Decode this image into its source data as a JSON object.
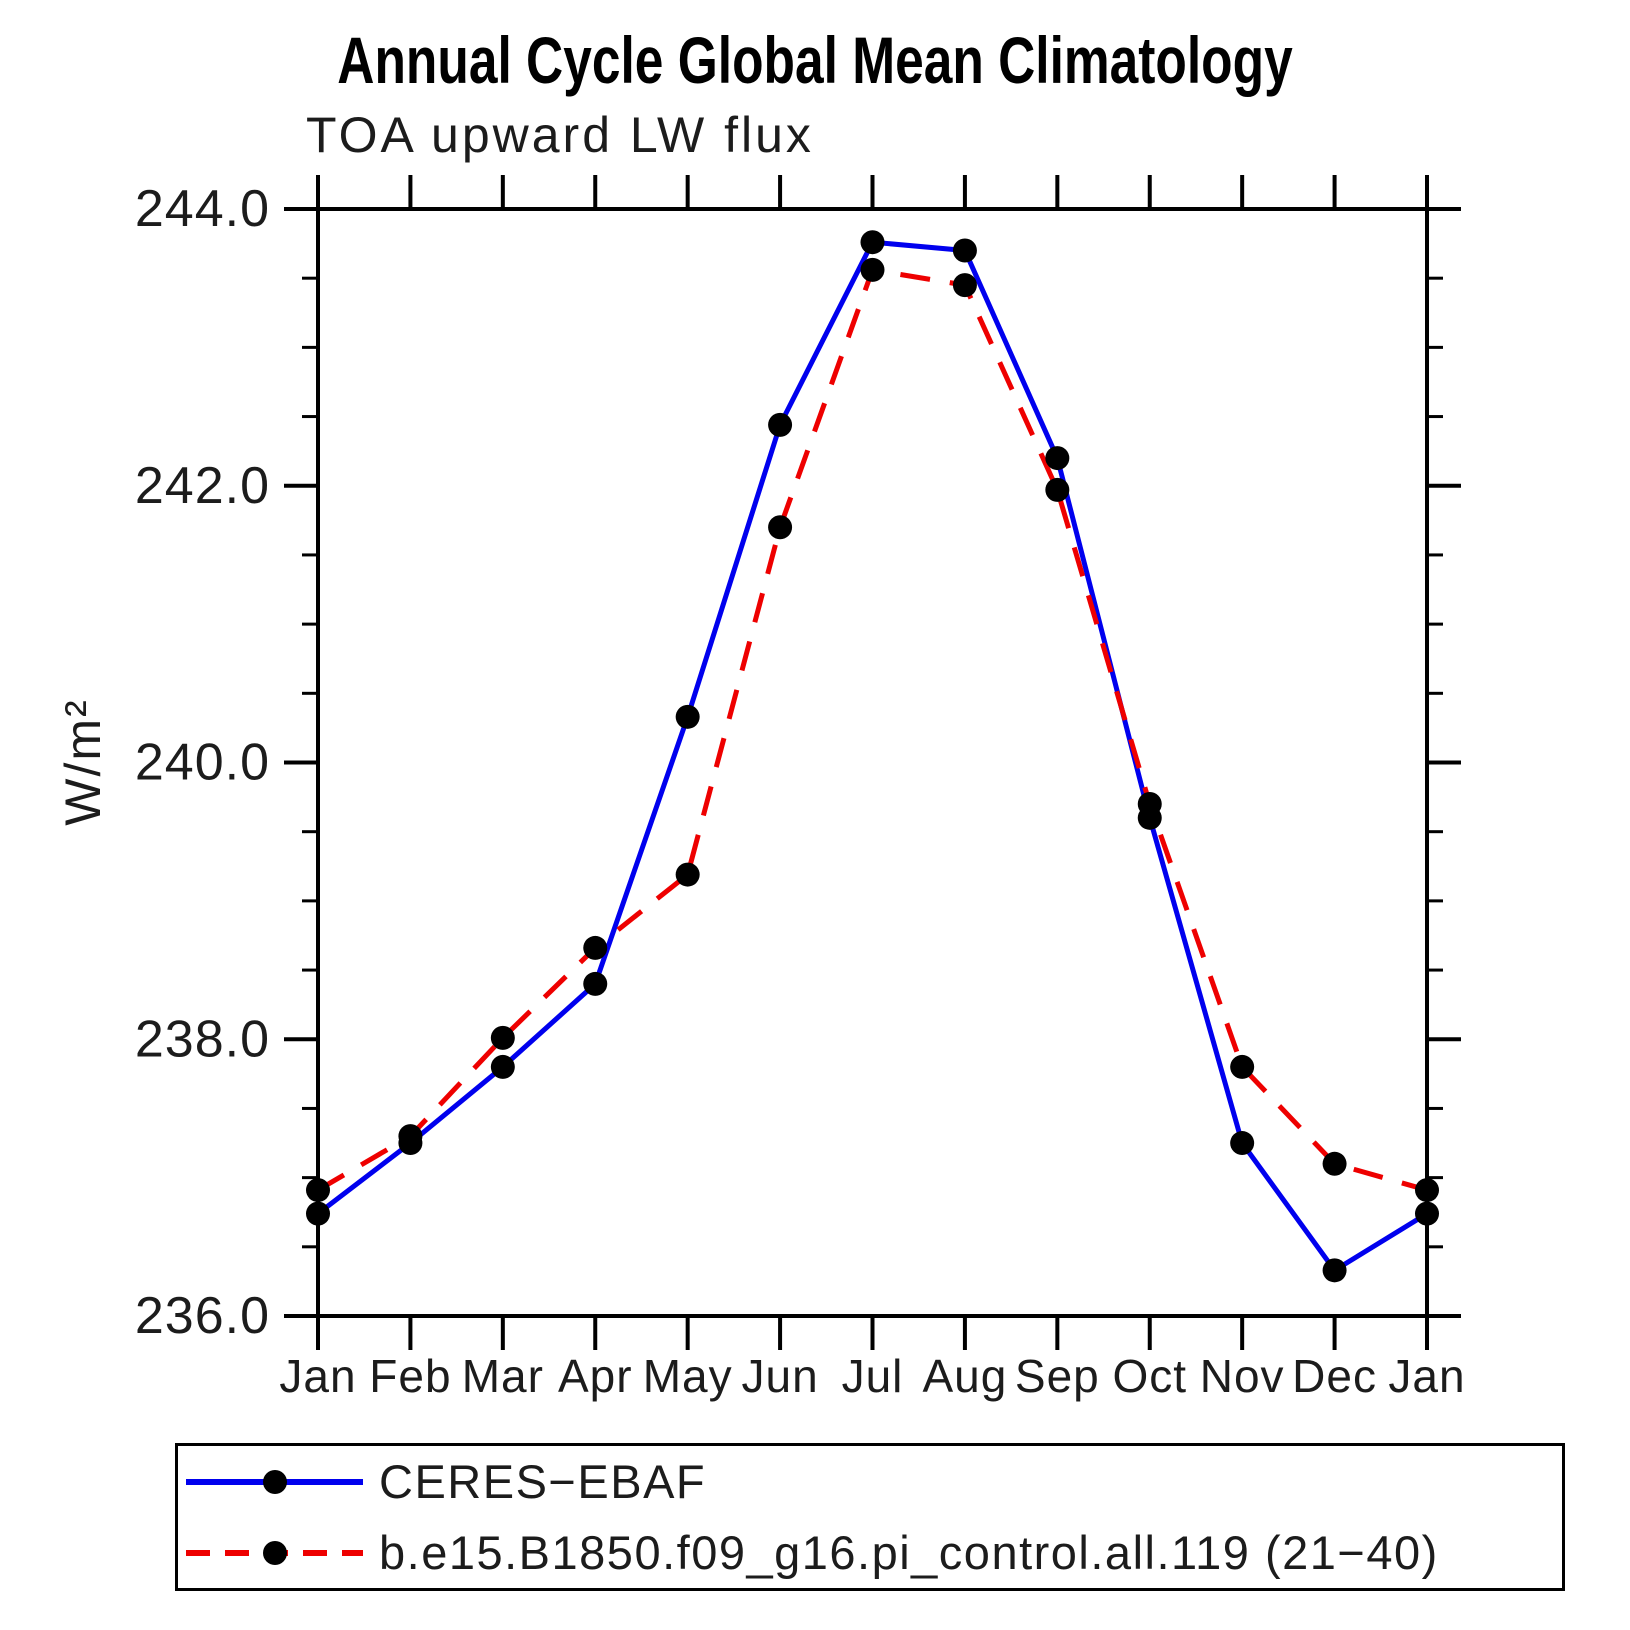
{
  "title": "Annual Cycle Global Mean Climatology",
  "chart_data": {
    "type": "line",
    "title": "Annual Cycle Global Mean Climatology",
    "subtitle": "TOA upward LW flux",
    "ylabel": "W/m²",
    "xlabel": "",
    "categories": [
      "Jan",
      "Feb",
      "Mar",
      "Apr",
      "May",
      "Jun",
      "Jul",
      "Aug",
      "Sep",
      "Oct",
      "Nov",
      "Dec",
      "Jan"
    ],
    "ylim": [
      236.0,
      244.0
    ],
    "ytick_major": [
      236.0,
      238.0,
      240.0,
      242.0,
      244.0
    ],
    "ytick_minor_step": 0.5,
    "ytick_label_format": "one_decimal",
    "grid": false,
    "legend_position": "bottom-left-box",
    "marker_color": "#000000",
    "series": [
      {
        "name": "CERES−EBAF",
        "color": "#0000ee",
        "style": "solid",
        "marker": "circle",
        "values": [
          236.74,
          237.25,
          237.8,
          238.4,
          240.33,
          242.44,
          243.76,
          243.7,
          242.2,
          239.6,
          237.25,
          236.33,
          236.74
        ]
      },
      {
        "name": "b.e15.B1850.f09_g16.pi_control.all.119 (21−40)",
        "color": "#ee0000",
        "style": "dashed",
        "marker": "circle",
        "values": [
          236.91,
          237.3,
          238.01,
          238.66,
          239.19,
          241.7,
          243.56,
          243.45,
          241.97,
          239.7,
          237.8,
          237.1,
          236.91
        ]
      }
    ]
  }
}
